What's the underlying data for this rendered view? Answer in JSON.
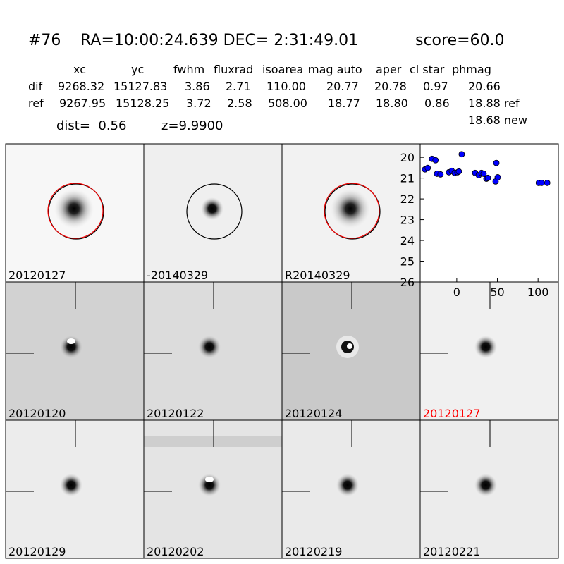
{
  "header": {
    "id": "#76",
    "coords": "RA=10:00:24.639 DEC= 2:31:49.01",
    "score": "score=60.0"
  },
  "table": {
    "columns": [
      "xc",
      "yc",
      "fwhm",
      "fluxrad",
      "isoarea",
      "mag auto",
      "aper",
      "cl star",
      "phmag"
    ],
    "rows": [
      [
        "dif",
        "9268.32",
        "15127.83",
        "3.86",
        "2.71",
        "110.00",
        "20.77",
        "20.78",
        "0.97",
        "20.66"
      ],
      [
        "ref",
        "9267.95",
        "15128.25",
        "3.72",
        "2.58",
        "508.00",
        "18.77",
        "18.80",
        "0.86",
        "18.88 ref"
      ]
    ],
    "extra": "18.68 new"
  },
  "dist": "dist=  0.56",
  "z": "z=9.9900",
  "panels": [
    {
      "label": "20120127"
    },
    {
      "label": "-20140329"
    },
    {
      "label": "R20140329"
    },
    {
      "label": "20120120"
    },
    {
      "label": "20120122"
    },
    {
      "label": "20120124"
    },
    {
      "label": "20120127",
      "label_color": "#ff0000"
    },
    {
      "label": "20120129"
    },
    {
      "label": "20120202"
    },
    {
      "label": "20120219"
    },
    {
      "label": "20120221"
    }
  ],
  "chart_data": {
    "type": "scatter",
    "color": "#0000ff",
    "x": [
      -39.1,
      -35.7,
      -30.4,
      -26.1,
      -24.3,
      -20.0,
      -9.6,
      -6.1,
      -2.6,
      0.9,
      2.6,
      6.1,
      22.6,
      27.0,
      30.4,
      33.0,
      36.5,
      38.3,
      47.8,
      48.7,
      50.4,
      100.9,
      104.3,
      111.3
    ],
    "values": [
      20.58,
      20.51,
      20.07,
      20.14,
      20.79,
      20.82,
      20.72,
      20.65,
      20.75,
      20.72,
      20.68,
      19.85,
      20.75,
      20.86,
      20.75,
      20.79,
      21.03,
      20.99,
      21.16,
      20.27,
      20.96,
      21.23,
      21.23,
      21.23
    ],
    "xlim": [
      -45,
      125
    ],
    "ylim": [
      19.35,
      26
    ],
    "invert_y": true,
    "xticks": [
      0,
      50,
      100
    ],
    "yticks": [
      20,
      21,
      22,
      23,
      24,
      25,
      26
    ]
  }
}
